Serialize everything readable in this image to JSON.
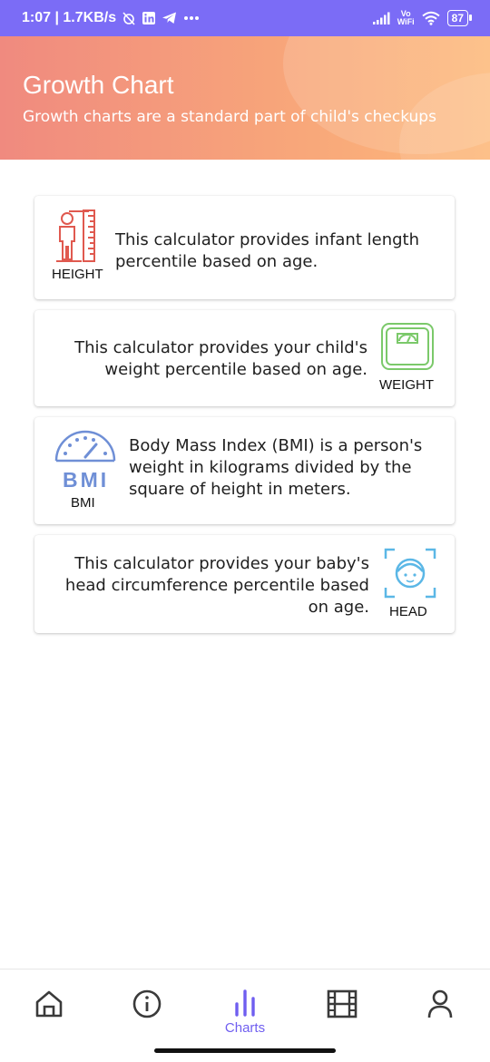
{
  "status_bar": {
    "time_speed": "1:07 | 1.7KB/s",
    "volte_top": "Vo",
    "volte_bottom": "WiFi",
    "battery": "87"
  },
  "header": {
    "title": "Growth Chart",
    "subtitle": "Growth charts are a standard part of child's checkups"
  },
  "cards": [
    {
      "icon": "height-measure-icon",
      "icon_label": "HEIGHT",
      "text_line1": "This calculator provides infant length",
      "text_line2": "percentile based on age."
    },
    {
      "icon": "weight-scale-icon",
      "icon_label": "WEIGHT",
      "text_line1": "This calculator provides your child's",
      "text_line2": "weight percentile based on age."
    },
    {
      "icon": "bmi-gauge-icon",
      "icon_label": "BMI",
      "icon_text": "BMI",
      "text_line1": "Body Mass Index (BMI) is a person's",
      "text_line2": "weight in kilograms divided by the",
      "text_line3": "square of height in meters."
    },
    {
      "icon": "head-scan-icon",
      "icon_label": "HEAD",
      "text_line1": "This calculator provides your baby's",
      "text_line2": "head circumference percentile based",
      "text_line3": "on age."
    }
  ],
  "bottom_nav": {
    "items": [
      {
        "icon": "home-icon",
        "label": ""
      },
      {
        "icon": "info-icon",
        "label": ""
      },
      {
        "icon": "charts-icon",
        "label": "Charts",
        "active": true
      },
      {
        "icon": "film-icon",
        "label": ""
      },
      {
        "icon": "profile-icon",
        "label": ""
      }
    ]
  },
  "colors": {
    "accent": "#6f5ef0",
    "status_bar": "#7b6cf6",
    "header_start": "#f08a7f",
    "header_end": "#fdb879"
  }
}
